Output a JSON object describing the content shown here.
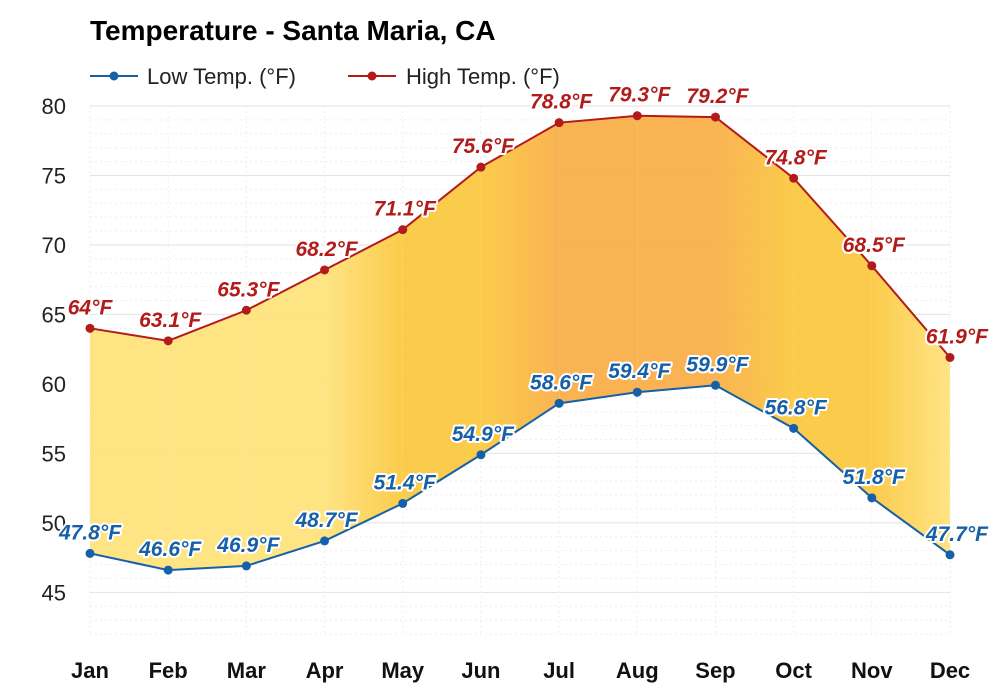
{
  "chart_data": {
    "type": "area",
    "title": "Temperature - Santa Maria, CA",
    "categories": [
      "Jan",
      "Feb",
      "Mar",
      "Apr",
      "May",
      "Jun",
      "Jul",
      "Aug",
      "Sep",
      "Oct",
      "Nov",
      "Dec"
    ],
    "series": [
      {
        "name": "Low Temp. (°F)",
        "color": "#1560a8",
        "values": [
          47.8,
          46.6,
          46.9,
          48.7,
          51.4,
          54.9,
          58.6,
          59.4,
          59.9,
          56.8,
          51.8,
          47.7
        ],
        "labels": [
          "47.8°F",
          "46.6°F",
          "46.9°F",
          "48.7°F",
          "51.4°F",
          "54.9°F",
          "58.6°F",
          "59.4°F",
          "59.9°F",
          "56.8°F",
          "51.8°F",
          "47.7°F"
        ]
      },
      {
        "name": "High Temp. (°F)",
        "color": "#b31b1b",
        "values": [
          64,
          63.1,
          65.3,
          68.2,
          71.1,
          75.6,
          78.8,
          79.3,
          79.2,
          74.8,
          68.5,
          61.9
        ],
        "labels": [
          "64°F",
          "63.1°F",
          "65.3°F",
          "68.2°F",
          "71.1°F",
          "75.6°F",
          "78.8°F",
          "79.3°F",
          "79.2°F",
          "74.8°F",
          "68.5°F",
          "61.9°F"
        ]
      }
    ],
    "ylim": [
      42,
      80
    ],
    "yticks": [
      45,
      50,
      55,
      60,
      65,
      70,
      75,
      80
    ],
    "ytick_labels": [
      "45",
      "50",
      "55",
      "60",
      "65",
      "70",
      "75",
      "80"
    ],
    "grid": true,
    "legend_position": "top-left",
    "fill_colors": {
      "cool": "#ffe27a",
      "mild": "#fbc73c",
      "warm": "#f8ad44"
    }
  }
}
